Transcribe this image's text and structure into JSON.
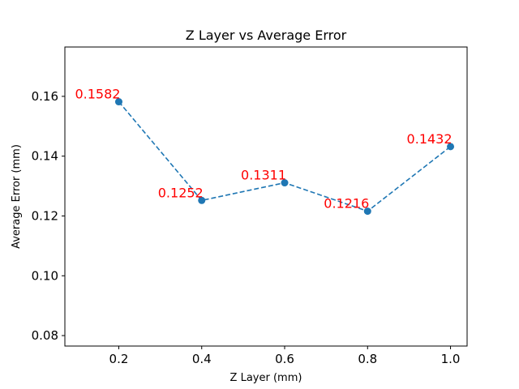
{
  "chart_data": {
    "type": "line",
    "title": "Z Layer vs Average Error",
    "xlabel": "Z Layer (mm)",
    "ylabel": "Average Error (mm)",
    "xlim": [
      0.07,
      1.04
    ],
    "ylim": [
      0.0765,
      0.1765
    ],
    "xticks": [
      0.2,
      0.4,
      0.6,
      0.8,
      1.0
    ],
    "xtick_labels": [
      "0.2",
      "0.4",
      "0.6",
      "0.8",
      "1.0"
    ],
    "yticks": [
      0.08,
      0.1,
      0.12,
      0.14,
      0.16
    ],
    "ytick_labels": [
      "0.08",
      "0.10",
      "0.12",
      "0.14",
      "0.16"
    ],
    "grid": false,
    "series": [
      {
        "x": [
          0.2,
          0.4,
          0.6,
          0.8,
          1.0
        ],
        "values": [
          0.1582,
          0.1252,
          0.1311,
          0.1216,
          0.1432
        ],
        "line_style": "dashed",
        "marker": "circle",
        "color": "#1f77b4"
      }
    ],
    "data_labels": [
      "0.1582",
      "0.1252",
      "0.1311",
      "0.1216",
      "0.1432"
    ],
    "data_label_color": "#ff0000"
  }
}
